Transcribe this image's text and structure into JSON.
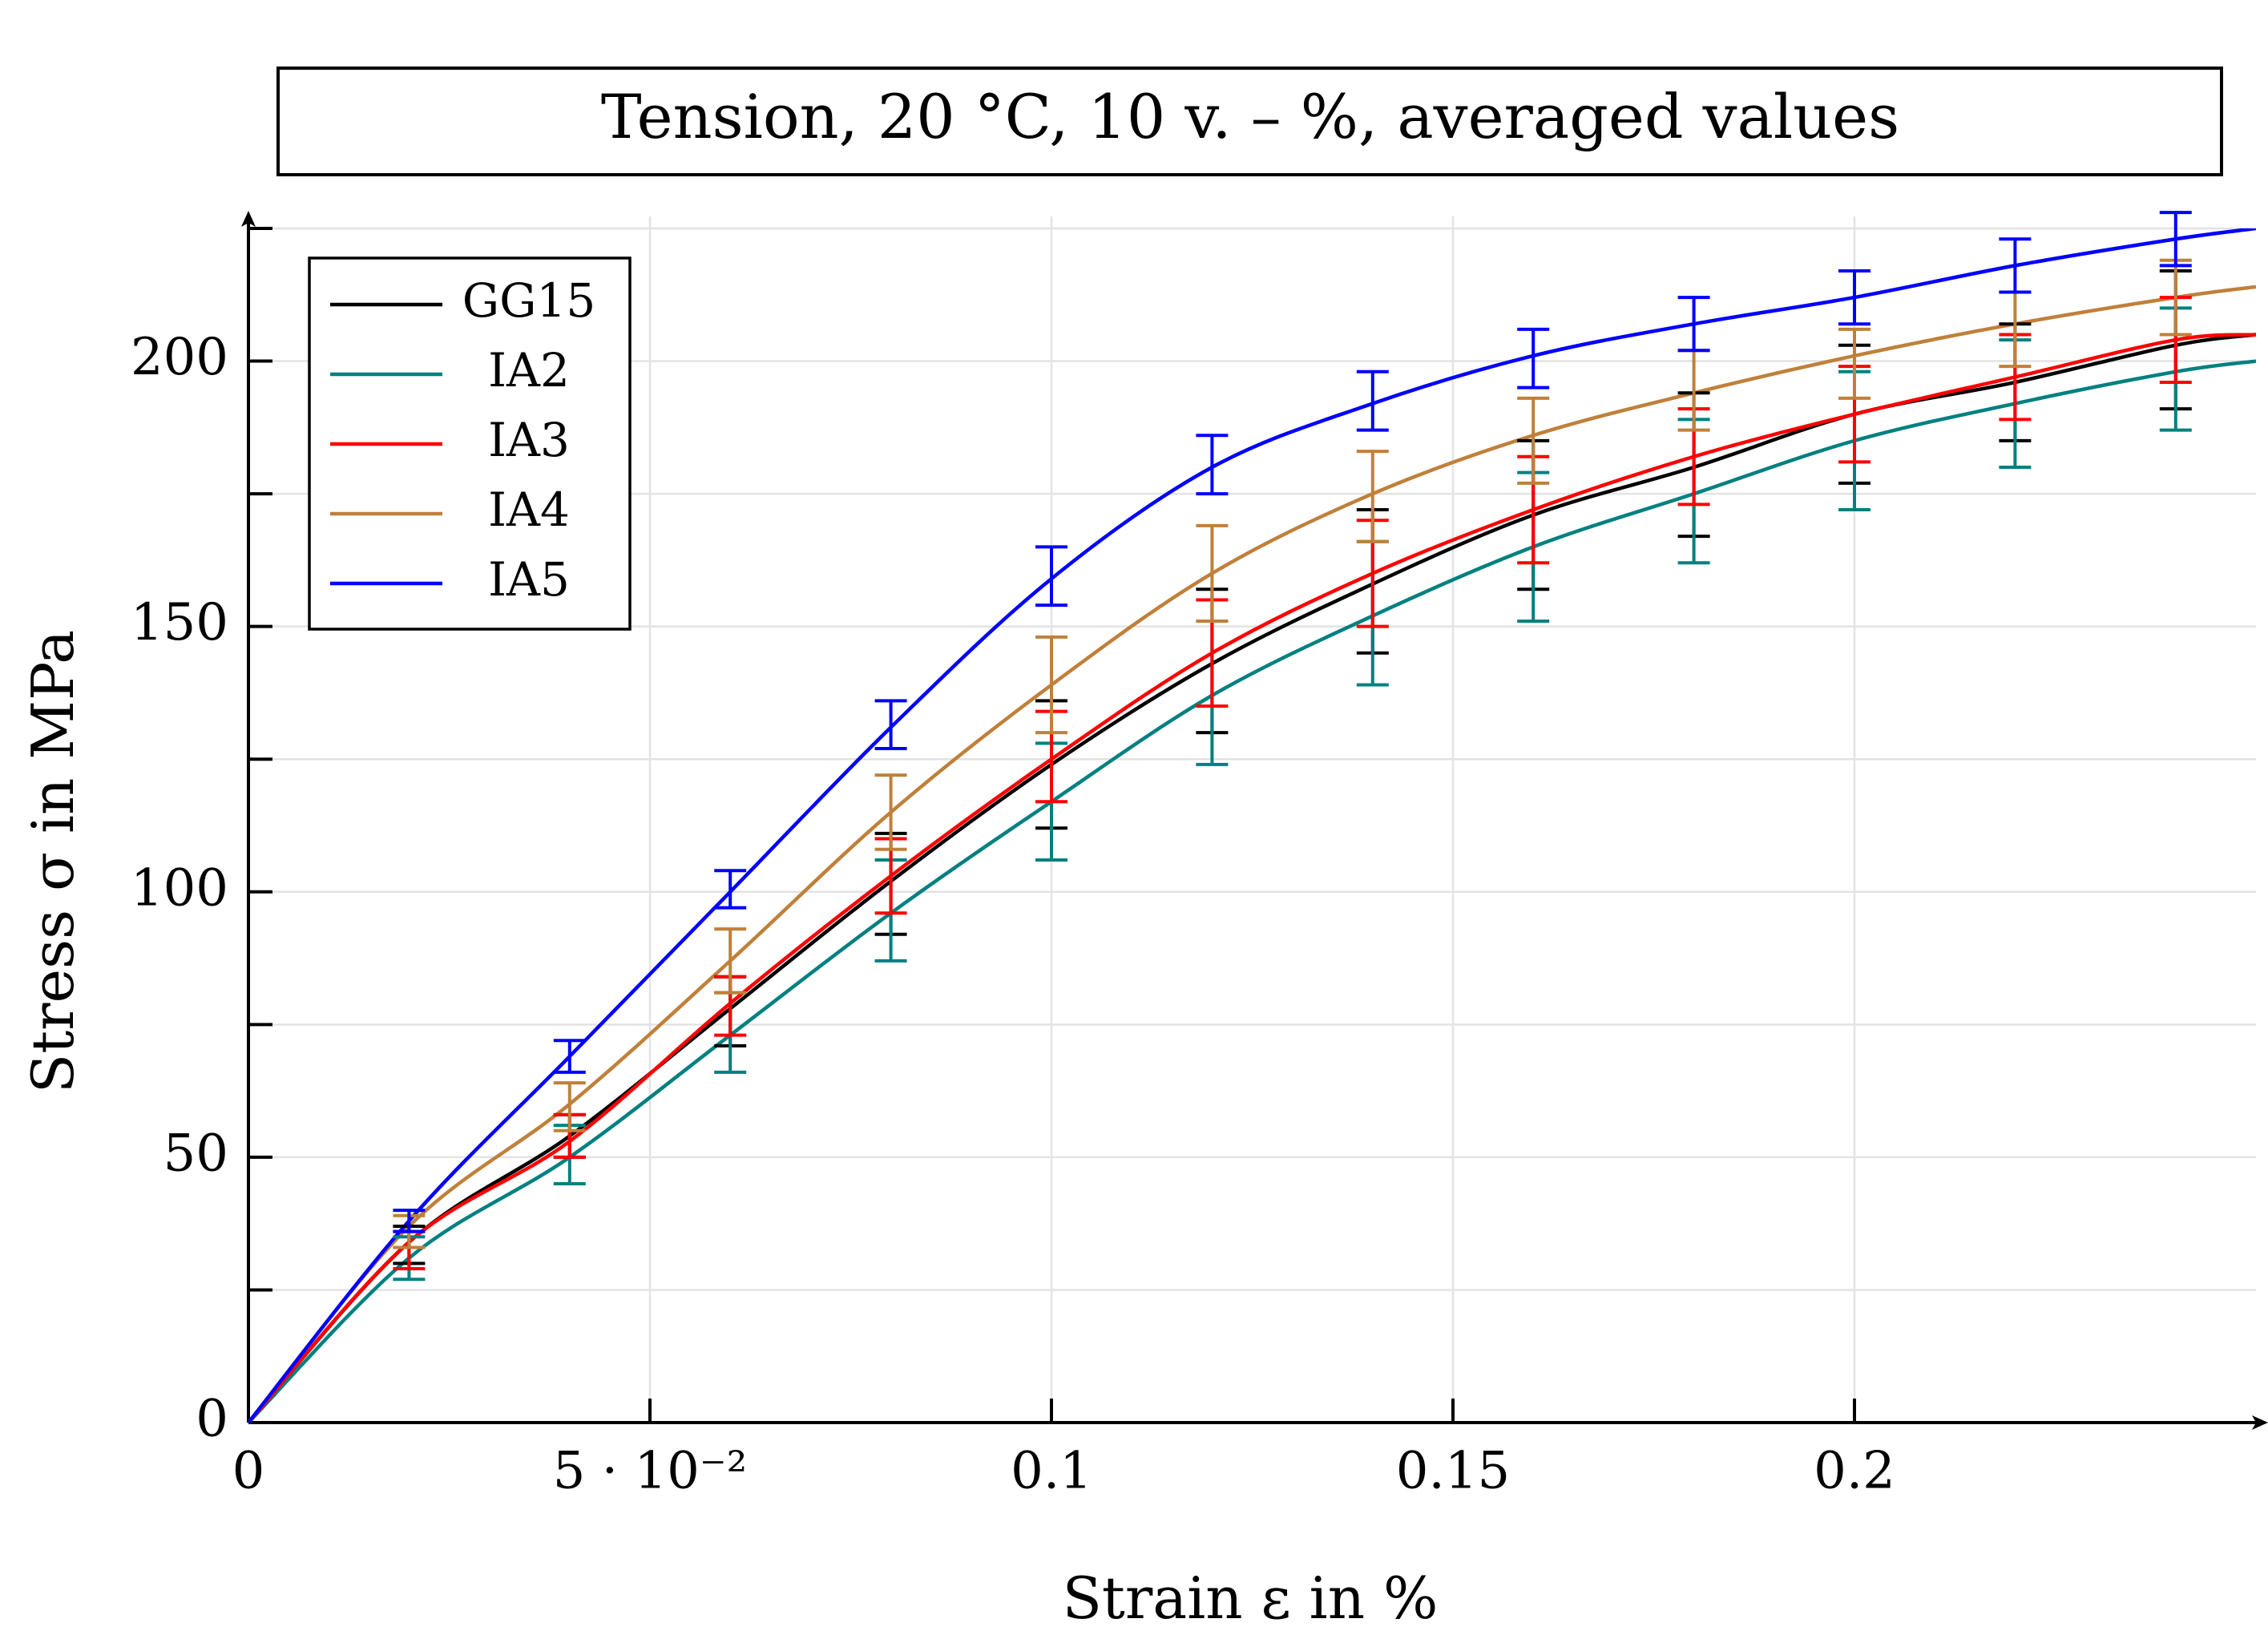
{
  "chart_data": {
    "type": "line",
    "title": "Tension, 20 °C, 10 v. – %, averaged values",
    "xlabel": "Strain ε in %",
    "ylabel": "Stress σ in MPa",
    "xlim": [
      0,
      0.25
    ],
    "ylim": [
      0,
      225
    ],
    "x_ticks": [
      {
        "value": 0,
        "label": "0"
      },
      {
        "value": 0.05,
        "label": "5 · 10⁻²"
      },
      {
        "value": 0.1,
        "label": "0.1"
      },
      {
        "value": 0.15,
        "label": "0.15"
      },
      {
        "value": 0.2,
        "label": "0.2"
      }
    ],
    "y_ticks": [
      {
        "value": 0,
        "label": "0"
      },
      {
        "value": 50,
        "label": "50"
      },
      {
        "value": 100,
        "label": "100"
      },
      {
        "value": 150,
        "label": "150"
      },
      {
        "value": 200,
        "label": "200"
      }
    ],
    "y_minor_ticks": [
      25,
      75,
      125,
      175,
      225
    ],
    "grid": true,
    "legend_position": "top-left",
    "x": [
      0.02,
      0.04,
      0.06,
      0.08,
      0.1,
      0.12,
      0.14,
      0.16,
      0.18,
      0.2,
      0.22,
      0.24
    ],
    "series": [
      {
        "name": "GG15",
        "color": "#000000",
        "curve_x": [
          0,
          0.02,
          0.04,
          0.06,
          0.08,
          0.1,
          0.12,
          0.14,
          0.16,
          0.18,
          0.2,
          0.22,
          0.24,
          0.25
        ],
        "curve_y": [
          0,
          34,
          54,
          78,
          102,
          124,
          143,
          158,
          171,
          180,
          190,
          196,
          203,
          205
        ],
        "err_x": [
          0.02,
          0.04,
          0.06,
          0.08,
          0.1,
          0.12,
          0.14,
          0.16,
          0.18,
          0.2,
          0.22,
          0.24
        ],
        "err_mean": [
          34,
          54,
          77,
          101,
          124,
          143,
          158,
          171,
          180,
          190,
          196,
          204
        ],
        "err_low": [
          30,
          50,
          71,
          92,
          112,
          130,
          145,
          157,
          167,
          177,
          185,
          191
        ],
        "err_high": [
          37,
          58,
          84,
          111,
          136,
          157,
          172,
          185,
          194,
          203,
          207,
          217
        ]
      },
      {
        "name": "IA2",
        "color": "#008080",
        "curve_x": [
          0,
          0.02,
          0.04,
          0.06,
          0.08,
          0.1,
          0.12,
          0.14,
          0.16,
          0.18,
          0.2,
          0.22,
          0.24,
          0.25
        ],
        "curve_y": [
          0,
          31,
          50,
          73,
          96,
          117,
          137,
          152,
          165,
          175,
          185,
          192,
          198,
          200
        ],
        "err_x": [
          0.02,
          0.04,
          0.06,
          0.08,
          0.1,
          0.12,
          0.14,
          0.16,
          0.18,
          0.2,
          0.22,
          0.24
        ],
        "err_mean": [
          31,
          50,
          73,
          96,
          117,
          137,
          152,
          165,
          175,
          185,
          192,
          198
        ],
        "err_low": [
          27,
          45,
          66,
          87,
          106,
          124,
          139,
          151,
          162,
          172,
          180,
          187
        ],
        "err_high": [
          35,
          56,
          81,
          106,
          128,
          151,
          166,
          179,
          189,
          198,
          204,
          210
        ]
      },
      {
        "name": "IA3",
        "color": "#ff0000",
        "curve_x": [
          0,
          0.02,
          0.04,
          0.06,
          0.08,
          0.1,
          0.12,
          0.14,
          0.16,
          0.18,
          0.2,
          0.22,
          0.24,
          0.25
        ],
        "curve_y": [
          0,
          34,
          53,
          79,
          103,
          125,
          145,
          160,
          172,
          182,
          190,
          197,
          204,
          205
        ],
        "err_x": [
          0.02,
          0.04,
          0.06,
          0.08,
          0.1,
          0.12,
          0.14,
          0.16,
          0.18,
          0.2,
          0.22,
          0.24
        ],
        "err_mean": [
          33,
          53,
          78,
          103,
          125,
          145,
          160,
          172,
          182,
          190,
          197,
          204
        ],
        "err_low": [
          29,
          50,
          73,
          96,
          117,
          135,
          150,
          162,
          173,
          181,
          189,
          196
        ],
        "err_high": [
          36,
          58,
          84,
          110,
          134,
          155,
          170,
          182,
          191,
          199,
          205,
          212
        ]
      },
      {
        "name": "IA4",
        "color": "#c0803a",
        "curve_x": [
          0,
          0.02,
          0.04,
          0.06,
          0.08,
          0.1,
          0.12,
          0.14,
          0.16,
          0.18,
          0.2,
          0.22,
          0.24,
          0.25
        ],
        "curve_y": [
          0,
          37,
          60,
          87,
          115,
          139,
          160,
          175,
          186,
          194,
          201,
          207,
          212,
          214
        ],
        "err_x": [
          0.02,
          0.04,
          0.06,
          0.08,
          0.1,
          0.12,
          0.14,
          0.16,
          0.18,
          0.2,
          0.22,
          0.24
        ],
        "err_mean": [
          36,
          60,
          87,
          115,
          139,
          160,
          175,
          186,
          194,
          201,
          207,
          212
        ],
        "err_low": [
          33,
          55,
          81,
          108,
          130,
          151,
          166,
          177,
          187,
          193,
          199,
          205
        ],
        "err_high": [
          39,
          64,
          93,
          122,
          148,
          169,
          183,
          193,
          202,
          206,
          213,
          219
        ]
      },
      {
        "name": "IA5",
        "color": "#0000ff",
        "curve_x": [
          0,
          0.02,
          0.04,
          0.06,
          0.08,
          0.1,
          0.12,
          0.14,
          0.16,
          0.18,
          0.2,
          0.22,
          0.24,
          0.25
        ],
        "curve_y": [
          0,
          38,
          69,
          100,
          131,
          159,
          180,
          192,
          201,
          207,
          212,
          218,
          223,
          225
        ],
        "err_x": [
          0.02,
          0.04,
          0.06,
          0.08,
          0.1,
          0.12,
          0.14,
          0.16,
          0.18,
          0.2,
          0.22,
          0.24
        ],
        "err_mean": [
          38,
          69,
          100,
          131,
          159,
          180,
          192,
          201,
          207,
          212,
          218,
          223
        ],
        "err_low": [
          36,
          66,
          97,
          127,
          154,
          175,
          187,
          195,
          202,
          207,
          213,
          218
        ],
        "err_high": [
          40,
          72,
          104,
          136,
          165,
          186,
          198,
          206,
          212,
          217,
          223,
          228
        ]
      }
    ]
  }
}
